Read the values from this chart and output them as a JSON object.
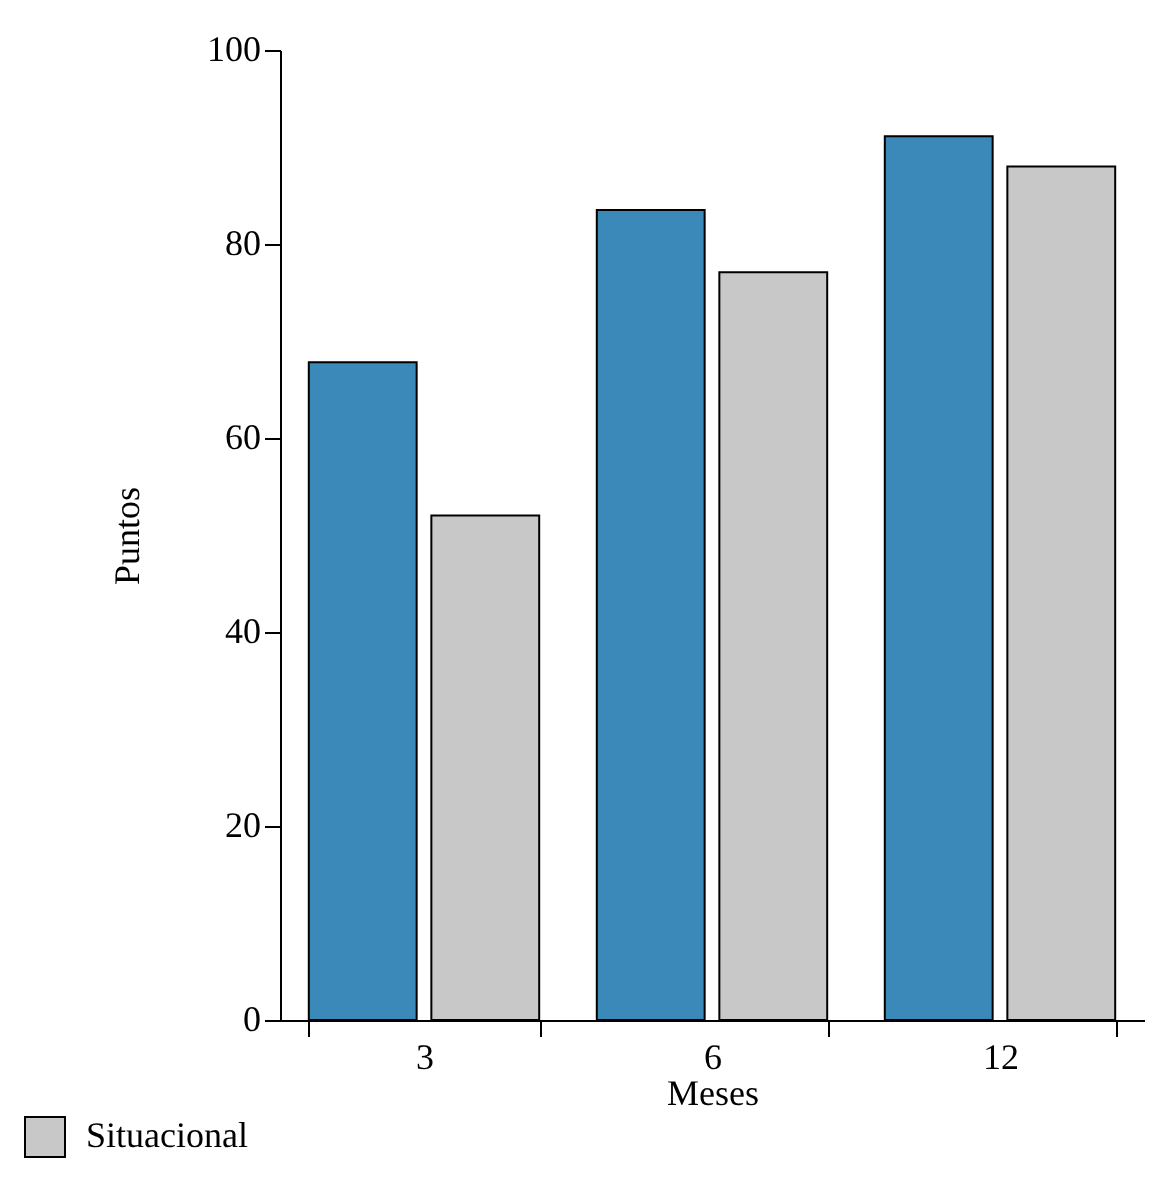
{
  "chart_data": {
    "type": "bar",
    "xlabel": "Meses",
    "ylabel": "Puntos",
    "categories": [
      "3",
      "6",
      "12"
    ],
    "series": [
      {
        "color": "#3a89b8",
        "values": [
          67.8,
          83.5,
          91.1
        ]
      },
      {
        "name": "Situacional",
        "color": "#c8c8c8",
        "values": [
          52.0,
          77.1,
          88.0
        ]
      }
    ],
    "ylim": [
      0,
      100
    ],
    "yticks": [
      0,
      20,
      40,
      60,
      80,
      100
    ],
    "legend": "bottom left",
    "grid": false
  }
}
